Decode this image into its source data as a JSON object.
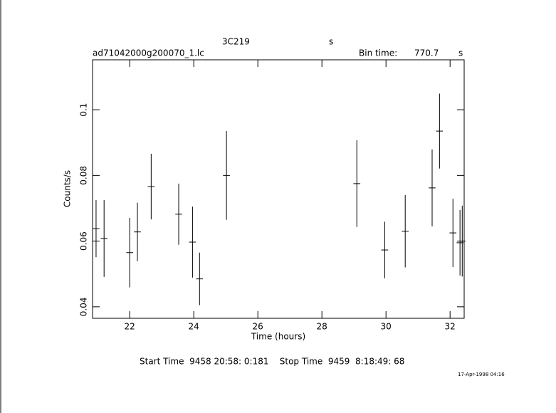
{
  "chart_data": {
    "type": "errorbar",
    "title": "3C219",
    "title_unit": "s",
    "file_name": "ad71042000g200070_1.lc",
    "bin_time_label": "Bin time:",
    "bin_time": "770.7",
    "bin_time_unit": "s",
    "xlabel": "Time (hours)",
    "ylabel": "Counts/s",
    "time_range": "Start Time  9458 20:58: 0:181    Stop Time  9459  8:18:49: 68",
    "timestamp": "17-Apr-1998 04:16",
    "x": [
      20.95,
      21.2,
      22.0,
      22.24,
      22.67,
      23.53,
      23.96,
      24.18,
      25.02,
      29.09,
      29.96,
      30.6,
      31.44,
      31.67,
      32.09,
      32.31,
      32.38
    ],
    "values": [
      0.0638,
      0.0608,
      0.0565,
      0.0628,
      0.0766,
      0.0682,
      0.0597,
      0.0485,
      0.08,
      0.0775,
      0.0573,
      0.063,
      0.0762,
      0.0935,
      0.0625,
      0.0595,
      0.06
    ],
    "errors": [
      0.0087,
      0.0117,
      0.0106,
      0.0089,
      0.01,
      0.0093,
      0.0108,
      0.008,
      0.0135,
      0.0132,
      0.0086,
      0.011,
      0.0117,
      0.0114,
      0.0104,
      0.01,
      0.0108
    ],
    "xerr": 0.107,
    "color": "#000000",
    "xlim": [
      20.84,
      32.44
    ],
    "ylim": [
      0.0365,
      0.1152
    ],
    "xticks": [
      22,
      24,
      26,
      28,
      30,
      32
    ],
    "yticks": [
      0.04,
      0.06,
      0.08,
      0.1
    ]
  }
}
